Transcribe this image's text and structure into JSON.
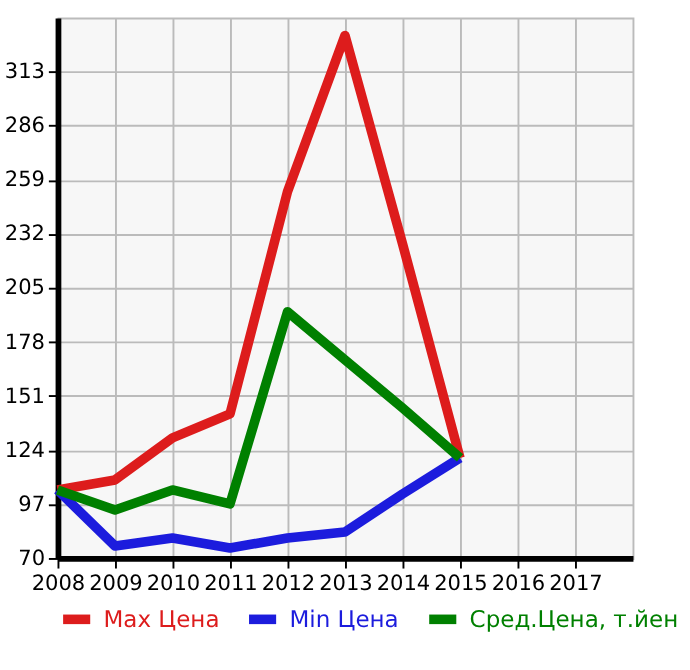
{
  "chart_data": {
    "type": "line",
    "x": [
      2008,
      2009,
      2010,
      2011,
      2012,
      2013,
      2014,
      2015
    ],
    "series": [
      {
        "name": "Max Цена",
        "color": "#dd1c1c",
        "values": [
          104,
          109,
          130,
          142,
          253,
          331,
          227,
          120
        ]
      },
      {
        "name": "Min Цена",
        "color": "#1c1cdd",
        "values": [
          104,
          76,
          80,
          75,
          80,
          83,
          102,
          120
        ]
      },
      {
        "name": "Сред.Цена, т.йен",
        "color": "#008000",
        "values": [
          104,
          94,
          104,
          97,
          193,
          169,
          145,
          120
        ]
      }
    ],
    "xlim": [
      2008,
      2018
    ],
    "xticks": [
      2008,
      2009,
      2010,
      2011,
      2012,
      2013,
      2014,
      2015,
      2016,
      2017
    ],
    "ylim": [
      70,
      340
    ],
    "yticks": [
      70,
      97,
      124,
      151,
      178,
      205,
      232,
      259,
      286,
      313
    ],
    "grid": true,
    "legend": "bottom",
    "marker": "none",
    "line_style": "solid"
  }
}
